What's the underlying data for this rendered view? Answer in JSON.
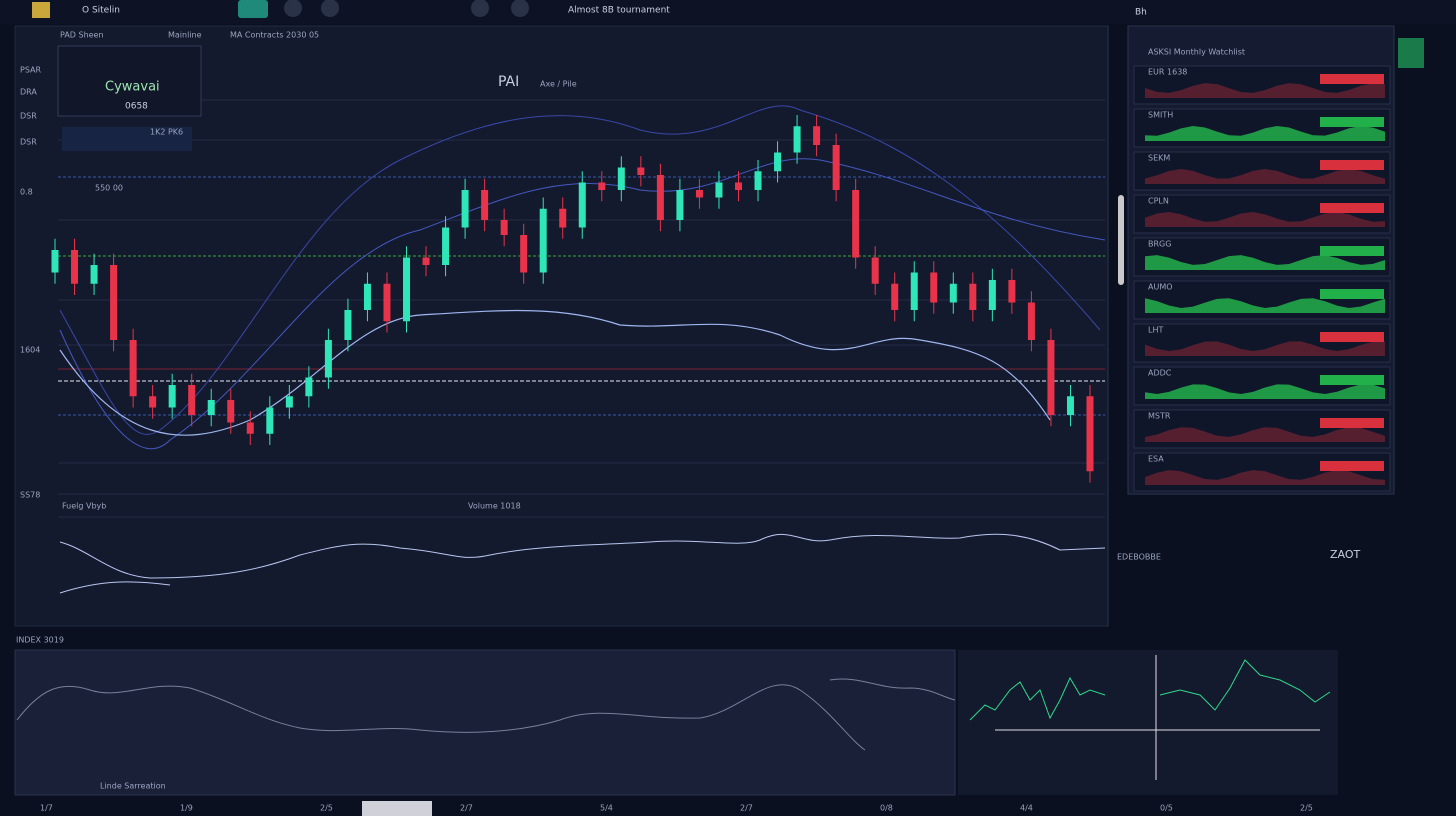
{
  "toolbar": {
    "left": "O Sitelin",
    "center": "Almost 8B tournament",
    "right": "Bh"
  },
  "header": {
    "tabs": [
      "PAD Sheen",
      "Mainline",
      "MA Contracts 2030 05"
    ]
  },
  "legend": {
    "title": "Cywavai",
    "value": "0658",
    "sub": "1K2 PK6",
    "meta": "550 00"
  },
  "left_labels": [
    "PSAR",
    "DRA",
    "DSR",
    "DSR",
    "0.8",
    "1604",
    "SS78"
  ],
  "chart_data": {
    "type": "candlestick",
    "title": "PAI",
    "subtitle": "Axe / Pile",
    "ylim": [
      0,
      104
    ],
    "up_color": "#2ee6b8",
    "down_color": "#e8334a",
    "open": [
      58,
      64,
      55,
      60,
      40,
      25,
      22,
      28,
      20,
      24,
      18,
      15,
      22,
      25,
      30,
      40,
      48,
      55,
      45,
      62,
      60,
      70,
      80,
      72,
      68,
      58,
      75,
      70,
      82,
      80,
      86,
      84,
      72,
      80,
      78,
      82,
      80,
      85,
      90,
      97,
      92,
      80,
      62,
      55,
      48,
      58,
      50,
      55,
      48,
      56,
      50,
      40,
      20,
      25
    ],
    "high": [
      67,
      67,
      63,
      63,
      43,
      28,
      31,
      31,
      27,
      27,
      21,
      25,
      28,
      33,
      43,
      51,
      58,
      58,
      65,
      65,
      73,
      83,
      83,
      75,
      71,
      78,
      78,
      85,
      85,
      89,
      89,
      87,
      83,
      83,
      85,
      85,
      88,
      93,
      100,
      100,
      95,
      83,
      65,
      58,
      61,
      61,
      58,
      58,
      59,
      59,
      53,
      43,
      28,
      28
    ],
    "low": [
      55,
      52,
      52,
      37,
      22,
      19,
      19,
      17,
      17,
      15,
      12,
      12,
      19,
      22,
      27,
      37,
      45,
      42,
      42,
      57,
      57,
      67,
      69,
      65,
      55,
      55,
      67,
      67,
      77,
      77,
      81,
      69,
      69,
      75,
      75,
      77,
      77,
      82,
      87,
      89,
      77,
      59,
      52,
      45,
      45,
      47,
      47,
      45,
      45,
      47,
      37,
      17,
      17,
      2
    ],
    "close": [
      64,
      55,
      60,
      40,
      25,
      22,
      28,
      20,
      24,
      18,
      15,
      22,
      25,
      30,
      40,
      48,
      55,
      45,
      62,
      60,
      70,
      80,
      72,
      68,
      58,
      75,
      70,
      82,
      80,
      86,
      84,
      72,
      80,
      78,
      82,
      80,
      85,
      90,
      97,
      92,
      80,
      62,
      55,
      48,
      58,
      50,
      55,
      48,
      56,
      50,
      40,
      20,
      25,
      5
    ]
  },
  "sub_chart": {
    "left": "Fuelg Vbyb",
    "center": "Volume 1018",
    "right_label": "EDEBOBBE",
    "badge": "ZAOT"
  },
  "bottom": {
    "title": "INDEX 3019",
    "footer": "Linde Sarreation",
    "axis": [
      "1/7",
      "1/9",
      "2/5",
      "2/7",
      "5/4",
      "2/7",
      "0/8",
      "4/4",
      "0/5",
      "2/5"
    ]
  },
  "panel": {
    "title": "ASKSI Monthly Watchlist",
    "rows": [
      "EUR 1638",
      "SMITH",
      "SEKM",
      "CPLN",
      "BRGG",
      "AUMO",
      "LHT",
      "ADDC",
      "MSTR",
      "ESA"
    ]
  }
}
